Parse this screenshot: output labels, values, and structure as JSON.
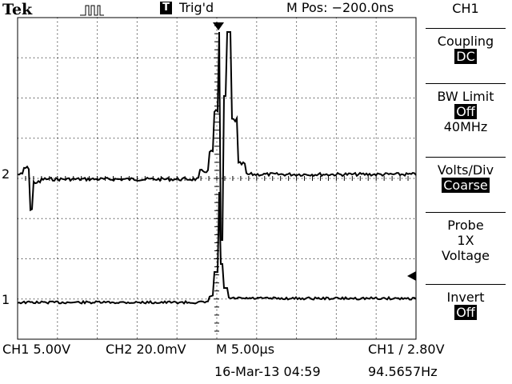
{
  "header": {
    "brand": "Tek",
    "acq_icon": "run-pulse-icon",
    "trigger_badge": "T",
    "trigger_status": "Trig'd",
    "position": "M Pos: −200.0ns"
  },
  "menu": {
    "title": "CH1",
    "coupling": {
      "label": "Coupling",
      "value": "DC"
    },
    "bw_limit": {
      "label": "BW Limit",
      "value": "Off",
      "extra": "40MHz"
    },
    "volts_div": {
      "label": "Volts/Div",
      "value": "Coarse"
    },
    "probe": {
      "label": "Probe",
      "line1": "1X",
      "line2": "Voltage"
    },
    "invert": {
      "label": "Invert",
      "value": "Off"
    }
  },
  "markers": {
    "ch2": "2",
    "ch1": "1"
  },
  "footer": {
    "ch1_scale": "CH1  5.00V",
    "ch2_scale": "CH2  20.0mV",
    "timebase": "M 5.00µs",
    "trigger": "CH1 ∕ 2.80V",
    "datetime": "16-Mar-13 04:59",
    "frequency": "94.5657Hz"
  },
  "colors": {
    "trace": "#000000",
    "background": "#ffffff",
    "grid": "#000000"
  }
}
